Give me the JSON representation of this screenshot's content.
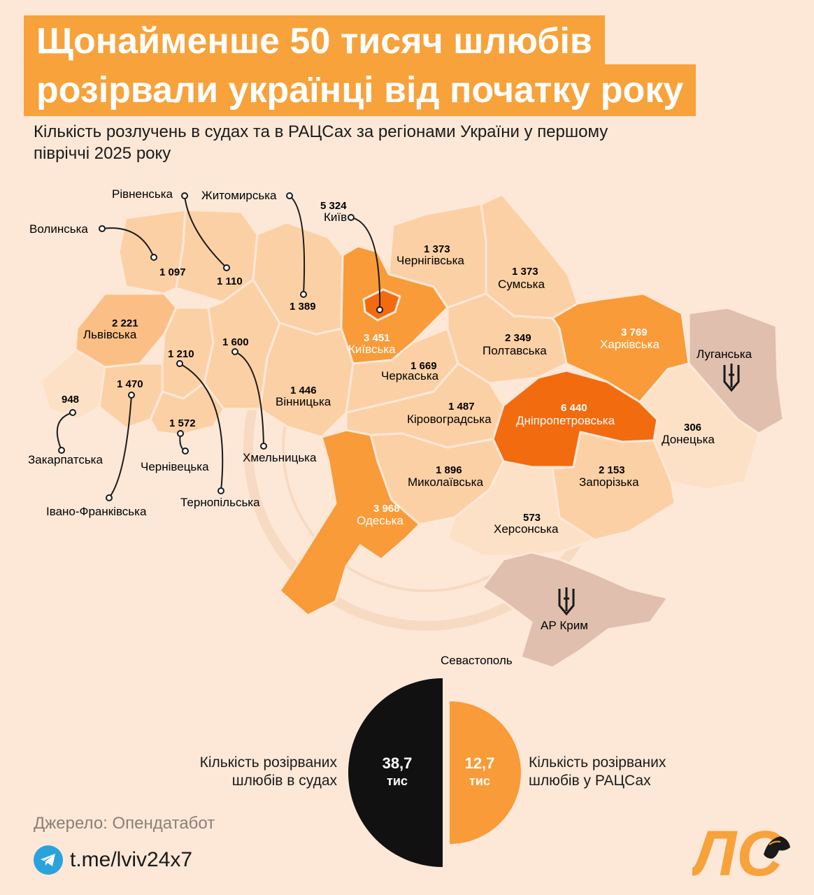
{
  "header": {
    "title_line_1": "Щонайменше 50 тисяч шлюбів",
    "title_line_2": "розірвали українці від початку року",
    "subtitle": "Кількість розлучень в судах та в РАЦСах за регіонами України у першому півріччі 2025 року"
  },
  "colors": {
    "background": "#fde8d8",
    "title_bg": "#f7a23b",
    "scale_lightest": "#fde1c6",
    "scale_light": "#fcd0a5",
    "scale_mid": "#fbbf86",
    "scale_strong": "#f89b38",
    "scale_max": "#f26b0f",
    "occupied": "#e0bfae",
    "courts": "#111111",
    "civil_registry": "#f89b38"
  },
  "regions": {
    "volynska": {
      "name": "Волинська",
      "value": "1 097"
    },
    "rivnenska": {
      "name": "Рівненська",
      "value": "1 110"
    },
    "zhytomyrska": {
      "name": "Житомирська",
      "value": "1 389"
    },
    "kyiv": {
      "name": "Київ",
      "value": "5 324"
    },
    "kyivska": {
      "name": "Київська",
      "value": "3 451"
    },
    "chernihivska": {
      "name": "Чернігівська",
      "value": "1 373"
    },
    "sumska": {
      "name": "Сумська",
      "value": "1 373"
    },
    "kharkivska": {
      "name": "Харківська",
      "value": "3 769"
    },
    "luhanska": {
      "name": "Луганська",
      "value": ""
    },
    "lvivska": {
      "name": "Львівська",
      "value": "2 221"
    },
    "ternopilska": {
      "name": "Тернопільська",
      "value": "1 210"
    },
    "khmelnytska": {
      "name": "Хмельницька",
      "value": "1 600"
    },
    "vinnytska": {
      "name": "Вінницька",
      "value": "1 446"
    },
    "cherkaska": {
      "name": "Черкаська",
      "value": "1 669"
    },
    "poltavska": {
      "name": "Полтавська",
      "value": "2 349"
    },
    "zakarpatska": {
      "name": "Закарпатська",
      "value": "948"
    },
    "ivano_frankivska": {
      "name": "Івано-Франківська",
      "value": "1 470"
    },
    "chernivetska": {
      "name": "Чернівецька",
      "value": "1 572"
    },
    "kirovohradska": {
      "name": "Кіровоградська",
      "value": "1 487"
    },
    "dnipropetrovska": {
      "name": "Дніпропетровська",
      "value": "6 440"
    },
    "donetska": {
      "name": "Донецька",
      "value": "306"
    },
    "mykolaivska": {
      "name": "Миколаївська",
      "value": "1 896"
    },
    "zaporizka": {
      "name": "Запорізька",
      "value": "2 153"
    },
    "odeska": {
      "name": "Одеська",
      "value": "3 968"
    },
    "khersonska": {
      "name": "Херсонська",
      "value": "573"
    },
    "crimea": {
      "name": "АР Крим",
      "value": ""
    },
    "sevastopol": {
      "name": "Севастополь",
      "value": ""
    }
  },
  "summary": {
    "courts_value": "38,7",
    "courts_unit": "тис",
    "courts_caption_1": "Кількість розірваних",
    "courts_caption_2": "шлюбів в судах",
    "civil_value": "12,7",
    "civil_unit": "тис",
    "civil_caption_1": "Кількість розірваних",
    "civil_caption_2": "шлюбів у РАЦСах"
  },
  "footer": {
    "source": "Джерело: Опендатабот",
    "telegram": "t.me/lviv24x7",
    "logo_text": "ЛС",
    "telegram_icon": "telegram-icon",
    "logo_icon": "lion-icon"
  }
}
